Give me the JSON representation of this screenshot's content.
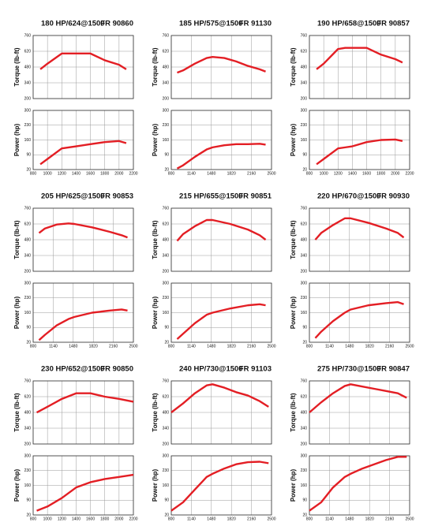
{
  "chart_data": [
    {
      "type": "line",
      "title": "180 HP/624@1500",
      "subtitle": "FR 90860",
      "xlim": [
        800,
        2200
      ],
      "xticks": [
        800,
        1000,
        1200,
        1400,
        1600,
        1800,
        2000,
        2200
      ],
      "x": [
        900,
        1000,
        1200,
        1400,
        1600,
        1800,
        2000,
        2100
      ],
      "grid": true,
      "panels": [
        {
          "ylabel": "Torque (lb-ft)",
          "ylim": [
            200,
            760
          ],
          "yticks": [
            200,
            340,
            480,
            620,
            760
          ],
          "series": [
            {
              "color": "#e31e24",
              "values": [
                460,
                510,
                600,
                600,
                600,
                540,
                500,
                460
              ]
            }
          ]
        },
        {
          "ylabel": "Power (hp)",
          "ylim": [
            20,
            300
          ],
          "yticks": [
            20,
            90,
            160,
            230,
            300
          ],
          "series": [
            {
              "color": "#e31e24",
              "values": [
                45,
                70,
                120,
                130,
                140,
                150,
                155,
                145
              ]
            }
          ]
        }
      ]
    },
    {
      "type": "line",
      "title": "185 HP/575@1500",
      "subtitle": "FR 91130",
      "xlim": [
        800,
        2500
      ],
      "xticks": [
        800,
        1140,
        1480,
        1820,
        2160,
        2500
      ],
      "x": [
        900,
        1000,
        1200,
        1400,
        1500,
        1700,
        1900,
        2100,
        2300,
        2400
      ],
      "grid": true,
      "panels": [
        {
          "ylabel": "Torque (lb-ft)",
          "ylim": [
            200,
            760
          ],
          "yticks": [
            200,
            340,
            480,
            620,
            760
          ],
          "series": [
            {
              "color": "#e31e24",
              "values": [
                430,
                450,
                510,
                560,
                570,
                560,
                530,
                490,
                460,
                440
              ]
            }
          ]
        },
        {
          "ylabel": "Power (hp)",
          "ylim": [
            20,
            300
          ],
          "yticks": [
            20,
            90,
            160,
            230,
            300
          ],
          "series": [
            {
              "color": "#e31e24",
              "values": [
                25,
                40,
                80,
                115,
                125,
                135,
                140,
                140,
                142,
                138
              ]
            }
          ]
        }
      ]
    },
    {
      "type": "line",
      "title": "190 HP/658@1500",
      "subtitle": "FR 90857",
      "xlim": [
        800,
        2200
      ],
      "xticks": [
        800,
        1000,
        1200,
        1400,
        1600,
        1800,
        2000,
        2200
      ],
      "x": [
        900,
        1000,
        1200,
        1300,
        1400,
        1500,
        1600,
        1800,
        2000,
        2100
      ],
      "grid": true,
      "panels": [
        {
          "ylabel": "Torque (lb-ft)",
          "ylim": [
            200,
            760
          ],
          "yticks": [
            200,
            340,
            480,
            620,
            760
          ],
          "series": [
            {
              "color": "#e31e24",
              "values": [
                460,
                510,
                640,
                650,
                650,
                650,
                650,
                590,
                550,
                520
              ]
            }
          ]
        },
        {
          "ylabel": "Power (hp)",
          "ylim": [
            20,
            300
          ],
          "yticks": [
            20,
            90,
            160,
            230,
            300
          ],
          "series": [
            {
              "color": "#e31e24",
              "values": [
                45,
                70,
                120,
                125,
                130,
                140,
                150,
                160,
                162,
                155
              ]
            }
          ]
        }
      ]
    },
    {
      "type": "line",
      "title": "205 HP/625@1500",
      "subtitle": "FR 90853",
      "xlim": [
        800,
        2500
      ],
      "xticks": [
        800,
        1140,
        1480,
        1820,
        2160,
        2500
      ],
      "x": [
        900,
        1000,
        1200,
        1400,
        1500,
        1800,
        2100,
        2300,
        2400
      ],
      "grid": true,
      "panels": [
        {
          "ylabel": "Torque (lb-ft)",
          "ylim": [
            200,
            760
          ],
          "yticks": [
            200,
            340,
            480,
            620,
            760
          ],
          "series": [
            {
              "color": "#e31e24",
              "values": [
                540,
                580,
                615,
                625,
                620,
                590,
                550,
                520,
                500
              ]
            }
          ]
        },
        {
          "ylabel": "Power (hp)",
          "ylim": [
            20,
            300
          ],
          "yticks": [
            20,
            90,
            160,
            230,
            300
          ],
          "series": [
            {
              "color": "#e31e24",
              "values": [
                30,
                55,
                100,
                130,
                140,
                160,
                170,
                175,
                170
              ]
            }
          ]
        }
      ]
    },
    {
      "type": "line",
      "title": "215 HP/655@1500",
      "subtitle": "FR 90851",
      "xlim": [
        800,
        2500
      ],
      "xticks": [
        800,
        1140,
        1480,
        1820,
        2160,
        2500
      ],
      "x": [
        900,
        1000,
        1200,
        1400,
        1500,
        1800,
        2100,
        2300,
        2400
      ],
      "grid": true,
      "panels": [
        {
          "ylabel": "Torque (lb-ft)",
          "ylim": [
            200,
            760
          ],
          "yticks": [
            200,
            340,
            480,
            620,
            760
          ],
          "series": [
            {
              "color": "#e31e24",
              "values": [
                470,
                530,
                600,
                655,
                655,
                620,
                570,
                520,
                480
              ]
            }
          ]
        },
        {
          "ylabel": "Power (hp)",
          "ylim": [
            20,
            300
          ],
          "yticks": [
            20,
            90,
            160,
            230,
            300
          ],
          "series": [
            {
              "color": "#e31e24",
              "values": [
                35,
                60,
                110,
                150,
                160,
                180,
                195,
                200,
                195
              ]
            }
          ]
        }
      ]
    },
    {
      "type": "line",
      "title": "220 HP/670@1500",
      "subtitle": "FR 90930",
      "xlim": [
        800,
        2500
      ],
      "xticks": [
        800,
        1140,
        1480,
        1820,
        2160,
        2500
      ],
      "x": [
        900,
        1000,
        1200,
        1400,
        1500,
        1800,
        2100,
        2300,
        2400
      ],
      "grid": true,
      "panels": [
        {
          "ylabel": "Torque (lb-ft)",
          "ylim": [
            200,
            760
          ],
          "yticks": [
            200,
            340,
            480,
            620,
            760
          ],
          "series": [
            {
              "color": "#e31e24",
              "values": [
                480,
                540,
                610,
                670,
                670,
                630,
                580,
                540,
                500
              ]
            }
          ]
        },
        {
          "ylabel": "Power (hp)",
          "ylim": [
            20,
            300
          ],
          "yticks": [
            20,
            90,
            160,
            230,
            300
          ],
          "series": [
            {
              "color": "#e31e24",
              "values": [
                40,
                70,
                120,
                160,
                175,
                195,
                205,
                210,
                200
              ]
            }
          ]
        }
      ]
    },
    {
      "type": "line",
      "title": "230 HP/652@1500",
      "subtitle": "FR 90850",
      "xlim": [
        800,
        2200
      ],
      "xticks": [
        800,
        1000,
        1200,
        1400,
        1600,
        1800,
        2000,
        2200
      ],
      "x": [
        850,
        1000,
        1200,
        1400,
        1600,
        1800,
        2000,
        2200
      ],
      "grid": true,
      "panels": [
        {
          "ylabel": "Torque (lb-ft)",
          "ylim": [
            200,
            760
          ],
          "yticks": [
            200,
            340,
            480,
            620,
            760
          ],
          "series": [
            {
              "color": "#e31e24",
              "values": [
                480,
                530,
                600,
                650,
                650,
                620,
                600,
                575
              ]
            }
          ]
        },
        {
          "ylabel": "Power (hp)",
          "ylim": [
            20,
            300
          ],
          "yticks": [
            20,
            90,
            160,
            230,
            300
          ],
          "series": [
            {
              "color": "#e31e24",
              "values": [
                40,
                60,
                100,
                150,
                175,
                190,
                200,
                210
              ]
            }
          ]
        }
      ]
    },
    {
      "type": "line",
      "title": "240 HP/730@1500",
      "subtitle": "FR 91103",
      "xlim": [
        800,
        2500
      ],
      "xticks": [
        800,
        1140,
        1480,
        1820,
        2160,
        2500
      ],
      "x": [
        800,
        1000,
        1200,
        1400,
        1500,
        1700,
        1900,
        2100,
        2300,
        2450
      ],
      "grid": true,
      "panels": [
        {
          "ylabel": "Torque (lb-ft)",
          "ylim": [
            200,
            760
          ],
          "yticks": [
            200,
            340,
            480,
            620,
            760
          ],
          "series": [
            {
              "color": "#e31e24",
              "values": [
                480,
                560,
                650,
                720,
                730,
                700,
                660,
                630,
                580,
                530
              ]
            }
          ]
        },
        {
          "ylabel": "Power (hp)",
          "ylim": [
            20,
            300
          ],
          "yticks": [
            20,
            90,
            160,
            230,
            300
          ],
          "series": [
            {
              "color": "#e31e24",
              "values": [
                40,
                80,
                140,
                200,
                215,
                240,
                260,
                270,
                272,
                265
              ]
            }
          ]
        }
      ]
    },
    {
      "type": "line",
      "title": "275 HP/730@1500",
      "subtitle": "FR 90847",
      "xlim": [
        800,
        2500
      ],
      "xticks": [
        800,
        1140,
        1480,
        1820,
        2160,
        2500
      ],
      "x": [
        800,
        1000,
        1200,
        1400,
        1500,
        1700,
        1900,
        2100,
        2300,
        2450
      ],
      "grid": true,
      "panels": [
        {
          "ylabel": "Torque (lb-ft)",
          "ylim": [
            200,
            760
          ],
          "yticks": [
            200,
            340,
            480,
            620,
            760
          ],
          "series": [
            {
              "color": "#e31e24",
              "values": [
                480,
                570,
                650,
                715,
                730,
                710,
                690,
                670,
                650,
                610
              ]
            }
          ]
        },
        {
          "ylabel": "Power (hp)",
          "ylim": [
            20,
            300
          ],
          "yticks": [
            20,
            90,
            160,
            230,
            300
          ],
          "series": [
            {
              "color": "#e31e24",
              "values": [
                40,
                80,
                150,
                200,
                215,
                240,
                260,
                280,
                295,
                295
              ]
            }
          ]
        }
      ]
    }
  ]
}
